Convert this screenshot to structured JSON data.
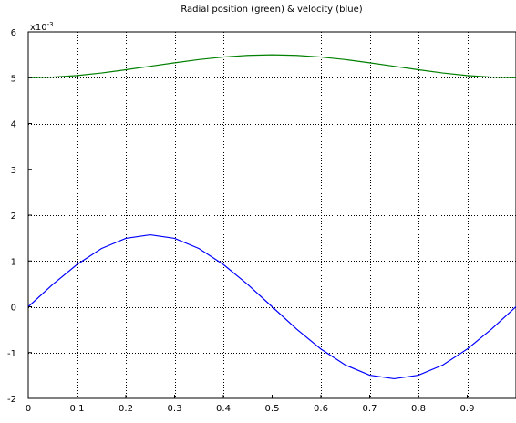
{
  "chart_data": {
    "type": "line",
    "title": "Radial position (green) & velocity (blue)",
    "xlabel": "",
    "ylabel": "",
    "y_scale_label": "x10-3",
    "xlim": [
      0,
      1
    ],
    "ylim": [
      -2,
      6
    ],
    "grid": true,
    "x_ticks": [
      0,
      0.1,
      0.2,
      0.3,
      0.4,
      0.5,
      0.6,
      0.7,
      0.8,
      0.9
    ],
    "y_ticks": [
      -2,
      -1,
      0,
      1,
      2,
      3,
      4,
      5,
      6
    ],
    "x_tick_labels": [
      "0",
      "0.1",
      "0.2",
      "0.3",
      "0.4",
      "0.5",
      "0.6",
      "0.7",
      "0.8",
      "0.9"
    ],
    "y_tick_labels": [
      "-2",
      "-1",
      "0",
      "1",
      "2",
      "3",
      "4",
      "5",
      "6"
    ],
    "series": [
      {
        "color": "#008000",
        "x": [
          0,
          0.05,
          0.1,
          0.15,
          0.2,
          0.25,
          0.3,
          0.35,
          0.4,
          0.45,
          0.5,
          0.55,
          0.6,
          0.65,
          0.7,
          0.75,
          0.8,
          0.85,
          0.9,
          0.95,
          1.0
        ],
        "y": [
          5.0,
          5.012,
          5.048,
          5.103,
          5.174,
          5.25,
          5.326,
          5.397,
          5.452,
          5.488,
          5.5,
          5.488,
          5.452,
          5.397,
          5.326,
          5.25,
          5.174,
          5.103,
          5.048,
          5.012,
          5.0
        ]
      },
      {
        "color": "#0000ff",
        "x": [
          0,
          0.05,
          0.1,
          0.15,
          0.2,
          0.25,
          0.3,
          0.35,
          0.4,
          0.45,
          0.5,
          0.55,
          0.6,
          0.65,
          0.7,
          0.75,
          0.8,
          0.85,
          0.9,
          0.95,
          1.0
        ],
        "y": [
          0,
          0.486,
          0.923,
          1.271,
          1.494,
          1.571,
          1.494,
          1.271,
          0.923,
          0.486,
          0,
          -0.486,
          -0.923,
          -1.271,
          -1.494,
          -1.571,
          -1.494,
          -1.271,
          -0.923,
          -0.486,
          0
        ]
      }
    ]
  }
}
